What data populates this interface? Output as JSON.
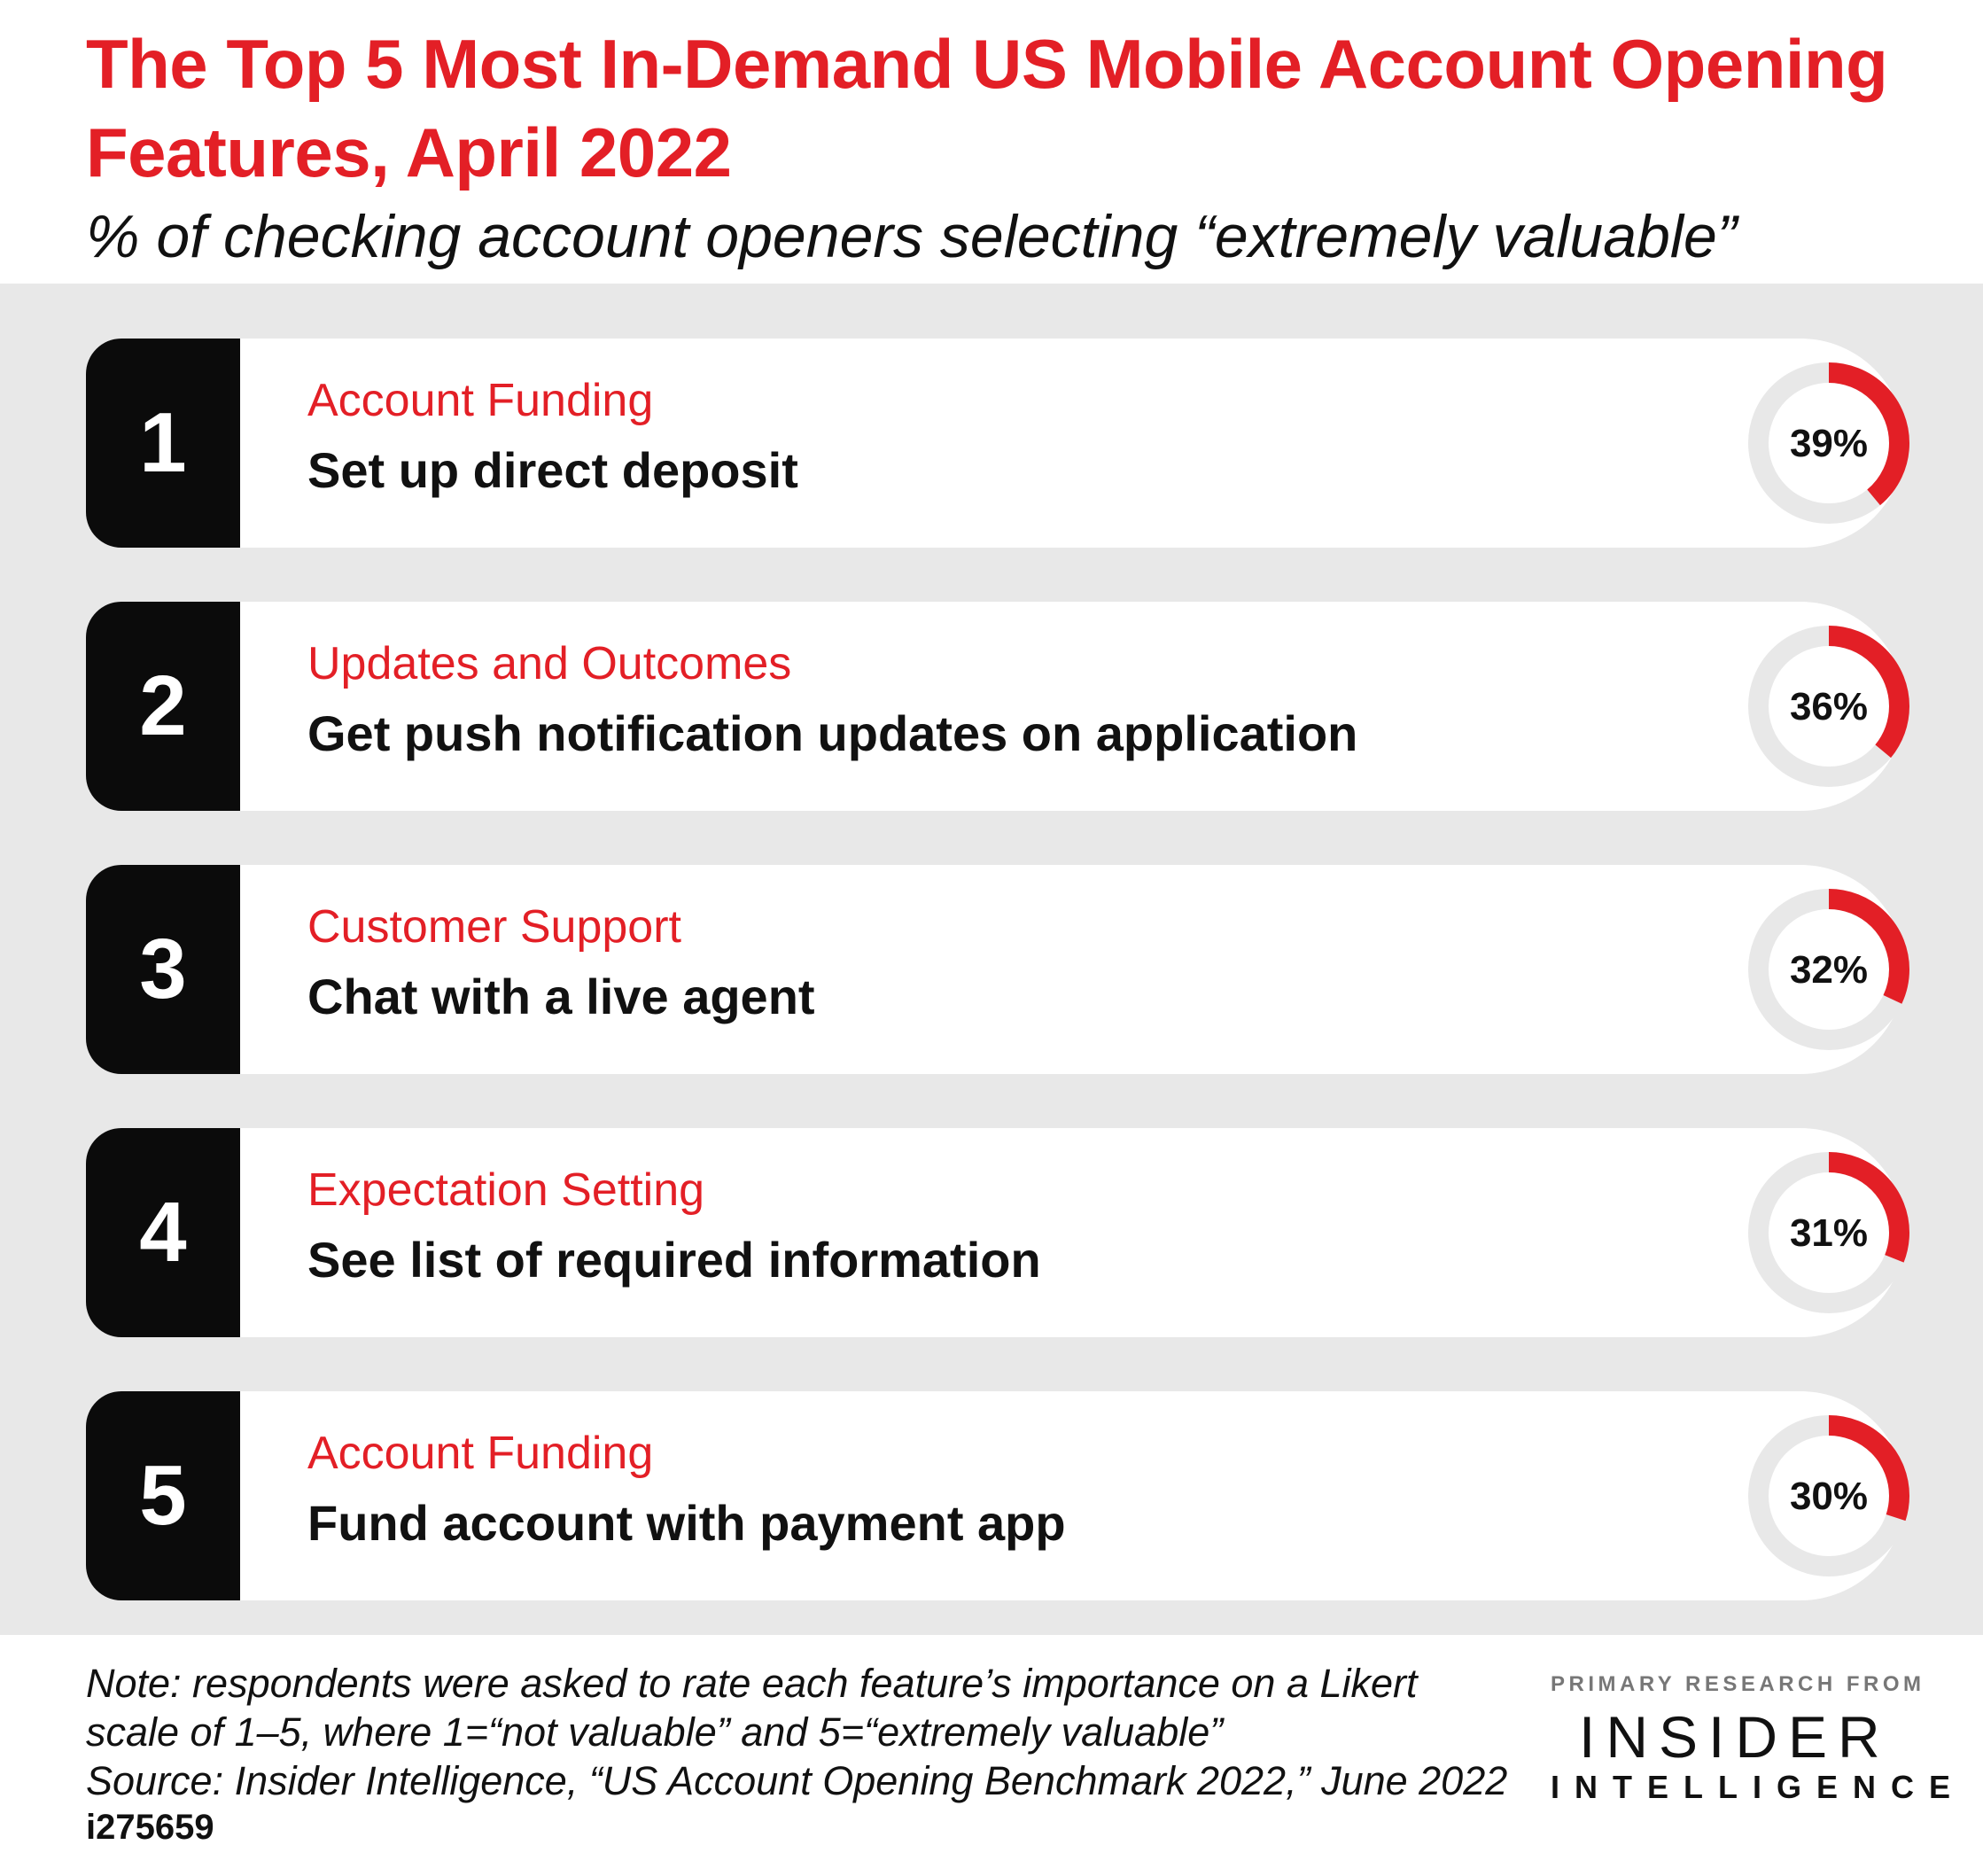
{
  "title": "The Top 5 Most In-Demand US Mobile Account Opening Features, April 2022",
  "subtitle": "% of checking account openers selecting “extremely valuable”",
  "colors": {
    "accent": "#e31f26",
    "ring_track": "#e8e8e8",
    "number_box": "#0b0b0b",
    "band": "#e8e8e8"
  },
  "chart_data": {
    "type": "table",
    "max": 100,
    "items": [
      {
        "rank": "1",
        "category": "Account Funding",
        "feature": "Set up direct deposit",
        "value": 39,
        "label": "39%"
      },
      {
        "rank": "2",
        "category": "Updates and Outcomes",
        "feature": "Get push notification updates on application",
        "value": 36,
        "label": "36%"
      },
      {
        "rank": "3",
        "category": "Customer Support",
        "feature": "Chat with a live agent",
        "value": 32,
        "label": "32%"
      },
      {
        "rank": "4",
        "category": "Expectation Setting",
        "feature": "See list of required information",
        "value": 31,
        "label": "31%"
      },
      {
        "rank": "5",
        "category": "Account Funding",
        "feature": "Fund account with payment app",
        "value": 30,
        "label": "30%"
      }
    ]
  },
  "footer": {
    "note_lines": [
      "Note: respondents were asked to rate each feature’s importance on a Likert",
      "scale of 1–5, where 1=“not valuable” and 5=“extremely valuable”",
      "Source: Insider Intelligence, “US Account Opening Benchmark 2022,” June 2022"
    ],
    "id": "i275659",
    "logo_line1": "PRIMARY RESEARCH FROM",
    "logo_line2": "INSIDER",
    "logo_line3": "INTELLIGENCE"
  }
}
